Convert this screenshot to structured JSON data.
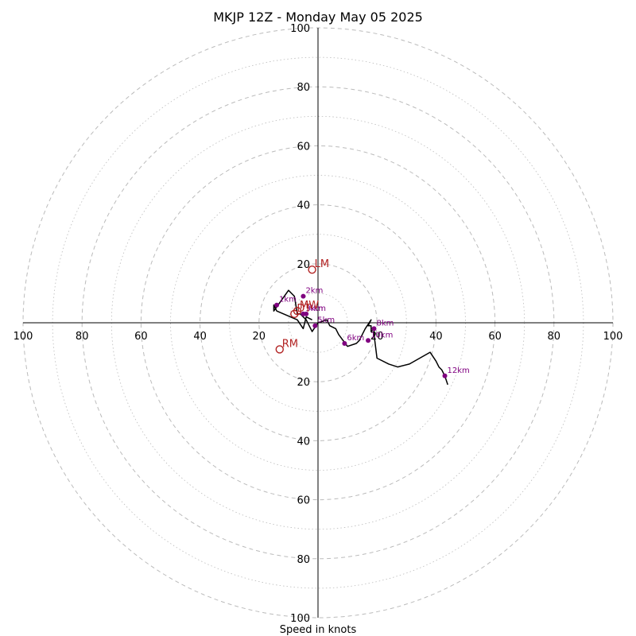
{
  "chart_data": {
    "type": "scatter",
    "subtype": "hodograph",
    "title": "MKJP 12Z - Monday May 05 2025",
    "xlabel": "Speed in knots",
    "range": [
      -100,
      100
    ],
    "ring_interval_major": 20,
    "ring_interval_minor": 10,
    "grid": true,
    "colors": {
      "trace": "#000000",
      "height_points": "#800080",
      "storm_motion": "#b22222",
      "grid": "#bbbbbb"
    },
    "axis_ticks": {
      "x_left": [
        "100",
        "80",
        "60",
        "40",
        "20"
      ],
      "x_right": [
        "20",
        "40",
        "60",
        "80",
        "100"
      ],
      "y_top": [
        "100",
        "80",
        "60",
        "40",
        "20"
      ],
      "y_bottom": [
        "20",
        "40",
        "60",
        "80",
        "100"
      ]
    },
    "hodograph_trace": {
      "u": [
        -2,
        -4,
        -5,
        -7,
        -14,
        -15,
        -15,
        -10,
        -9,
        -8,
        -7,
        -6,
        -4,
        -2,
        0,
        3,
        4,
        6,
        7,
        10,
        13,
        14,
        16,
        18,
        17,
        18,
        18,
        19,
        19,
        20,
        24,
        27,
        31,
        38,
        40,
        41,
        42,
        43,
        44
      ],
      "v": [
        1,
        2,
        -2,
        1,
        4,
        6,
        4,
        11,
        10,
        9,
        3,
        3,
        1,
        -3,
        0,
        1,
        -1,
        -2,
        -4,
        -8,
        -7,
        -6,
        -2,
        1,
        -1,
        -1,
        -3,
        -2,
        -4,
        -12,
        -14,
        -15,
        -14,
        -10,
        -13,
        -15,
        -16,
        -18,
        -21
      ]
    },
    "height_markers": [
      {
        "label": "1km",
        "u": -14,
        "v": 6
      },
      {
        "label": "2km",
        "u": -5,
        "v": 9
      },
      {
        "label": "3km",
        "u": -5,
        "v": 3
      },
      {
        "label": "4km",
        "u": -4,
        "v": 3
      },
      {
        "label": "5km",
        "u": -1,
        "v": -1
      },
      {
        "label": "6km",
        "u": 9,
        "v": -7
      },
      {
        "label": "8km",
        "u": 19,
        "v": -2
      },
      {
        "label": "10km",
        "u": 17,
        "v": -6
      },
      {
        "label": "12km",
        "u": 43,
        "v": -18
      }
    ],
    "storm_motion": [
      {
        "label": "LM",
        "u": -2,
        "v": 18
      },
      {
        "label": "RM",
        "u": -13,
        "v": -9
      },
      {
        "label": "MW",
        "u": -7,
        "v": 4
      },
      {
        "label": "DT",
        "u": -8,
        "v": 3
      }
    ]
  }
}
